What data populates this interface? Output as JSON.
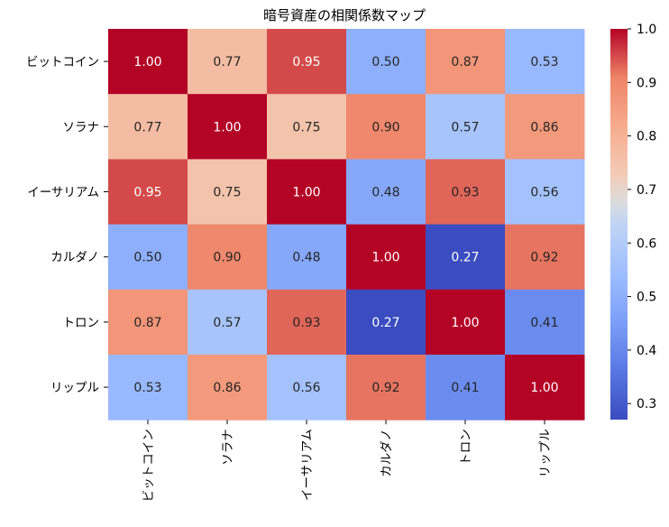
{
  "chart_data": {
    "type": "heatmap",
    "title": "暗号資産の相関係数マップ",
    "row_labels": [
      "ビットコイン",
      "ソラナ",
      "イーサリアム",
      "カルダノ",
      "トロン",
      "リップル"
    ],
    "col_labels": [
      "ビットコイン",
      "ソラナ",
      "イーサリアム",
      "カルダノ",
      "トロン",
      "リップル"
    ],
    "values": [
      [
        1.0,
        0.77,
        0.95,
        0.5,
        0.87,
        0.53
      ],
      [
        0.77,
        1.0,
        0.75,
        0.9,
        0.57,
        0.86
      ],
      [
        0.95,
        0.75,
        1.0,
        0.48,
        0.93,
        0.56
      ],
      [
        0.5,
        0.9,
        0.48,
        1.0,
        0.27,
        0.92
      ],
      [
        0.87,
        0.57,
        0.93,
        0.27,
        1.0,
        0.41
      ],
      [
        0.53,
        0.86,
        0.56,
        0.92,
        0.41,
        1.0
      ]
    ],
    "value_format": "0.00",
    "colormap": "coolwarm",
    "colorbar": {
      "range": [
        0.27,
        1.0
      ],
      "ticks": [
        "0.3",
        "0.4",
        "0.5",
        "0.6",
        "0.7",
        "0.8",
        "0.9",
        "1.0"
      ]
    },
    "xlabel": "",
    "ylabel": ""
  }
}
